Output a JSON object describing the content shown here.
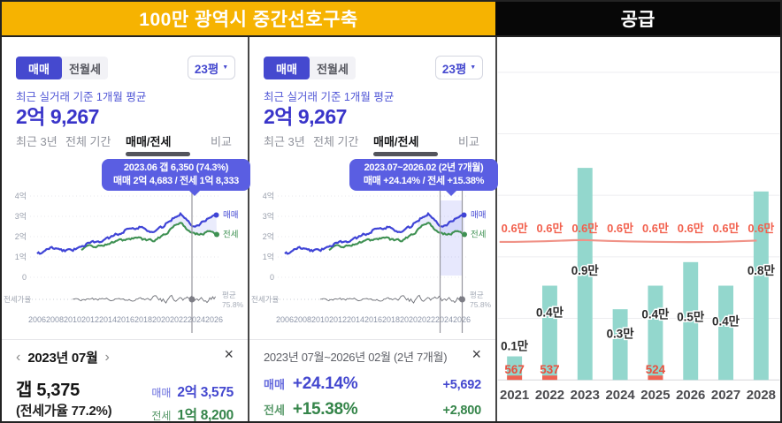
{
  "header": {
    "left_title": "100만 광역시 중간선호구축",
    "right_title": "공급"
  },
  "panels": [
    {
      "toggle": {
        "sale": "매매",
        "rent": "전월세"
      },
      "size_select": "23평",
      "caption": "최근 실거래 기준 1개월 평균",
      "price": "2억 9,267",
      "tabs": [
        "최근 3년",
        "전체 기간",
        "매매/전세",
        "비교"
      ],
      "active_tab": "매매/전세",
      "tooltip": [
        "2023.06  갭 6,350 (74.3%)",
        "매매 2억 4,683 / 전세 1억 8,333"
      ],
      "legend": {
        "sale": "매매",
        "jeonse": "전세",
        "avg_label": "평균",
        "avg_value": "75.8%",
        "ratio_label": "전세가율",
        "zero": "0"
      },
      "y_ticks": [
        "4억",
        "3억",
        "2억",
        "1억"
      ],
      "x_ticks": [
        "2006",
        "2008",
        "2010",
        "2012",
        "2014",
        "2016",
        "2018",
        "2020",
        "2022",
        "2024",
        "2026"
      ],
      "footer": {
        "nav_prev": "‹",
        "title": "2023년 07월",
        "nav_next": "›",
        "close": "×",
        "gap_value": "갭 5,375",
        "ratio_value": "(전세가율 77.2%)",
        "sale_label": "매매",
        "sale_value": "2억 3,575",
        "jeonse_label": "전세",
        "jeonse_value": "1억 8,200"
      }
    },
    {
      "toggle": {
        "sale": "매매",
        "rent": "전월세"
      },
      "size_select": "23평",
      "caption": "최근 실거래 기준 1개월 평균",
      "price": "2억 9,267",
      "tabs": [
        "최근 3년",
        "전체 기간",
        "매매/전세",
        "비교"
      ],
      "active_tab": "매매/전세",
      "tooltip": [
        "2023.07~2026.02 (2년 7개월)",
        "매매 +24.14%  /  전세 +15.38%"
      ],
      "legend": {
        "sale": "매매",
        "jeonse": "전세",
        "avg_label": "평균",
        "avg_value": "75.8%",
        "ratio_label": "전세가율",
        "zero": "0"
      },
      "y_ticks": [
        "4억",
        "3억",
        "2억",
        "1억"
      ],
      "x_ticks": [
        "2006",
        "2008",
        "2010",
        "2012",
        "2014",
        "2016",
        "2018",
        "2020",
        "2022",
        "2024",
        "2026"
      ],
      "footer": {
        "title": "2023년 07월~2026년 02월 (2년 7개월)",
        "close": "×",
        "sale_label": "매매",
        "sale_pct": "+24.14%",
        "sale_delta": "+5,692",
        "jeonse_label": "전세",
        "jeonse_pct": "+15.38%",
        "jeonse_delta": "+2,800"
      }
    }
  ],
  "colors": {
    "accent_indigo": "#4448cf",
    "price_indigo": "#3934c9",
    "tooltip_bg": "#5a5ee2",
    "line_blue": "#3f44d6",
    "line_green": "#3f9153",
    "bar_teal": "#93d7cd",
    "red": "#f2604d",
    "red_line": "#f09287",
    "yellow": "#f6b301",
    "gray_text": "#8f929b"
  },
  "chart_data": [
    {
      "type": "line",
      "title": "매매/전세 실거래가 추이 (왼쪽 패널)",
      "x_range": [
        2006,
        2026.3
      ],
      "y_unit": "억",
      "y_ticks": [
        4,
        3,
        2,
        1,
        0
      ],
      "x_tick_years": [
        2006,
        2008,
        2010,
        2012,
        2014,
        2016,
        2018,
        2020,
        2022,
        2024,
        2026
      ],
      "series": [
        {
          "name": "매매",
          "anchors": [
            [
              2006,
              1.1
            ],
            [
              2007.5,
              1.45
            ],
            [
              2008.5,
              1.35
            ],
            [
              2010,
              1.3
            ],
            [
              2011,
              1.6
            ],
            [
              2012.5,
              1.7
            ],
            [
              2014,
              1.9
            ],
            [
              2015.5,
              2.2
            ],
            [
              2016.5,
              2.5
            ],
            [
              2018,
              2.45
            ],
            [
              2019,
              2.25
            ],
            [
              2020,
              2.4
            ],
            [
              2021.5,
              3.0
            ],
            [
              2022.3,
              3.15
            ],
            [
              2023,
              2.75
            ],
            [
              2023.6,
              2.55
            ],
            [
              2024.3,
              2.65
            ],
            [
              2025.3,
              2.9
            ],
            [
              2026.3,
              3.05
            ]
          ]
        },
        {
          "name": "전세",
          "anchors": [
            [
              2011,
              1.35
            ],
            [
              2012,
              1.5
            ],
            [
              2013.5,
              1.55
            ],
            [
              2014.5,
              1.7
            ],
            [
              2016,
              1.85
            ],
            [
              2017.5,
              1.9
            ],
            [
              2018.5,
              1.8
            ],
            [
              2019.5,
              1.85
            ],
            [
              2020.5,
              2.1
            ],
            [
              2021.5,
              2.6
            ],
            [
              2022.3,
              2.75
            ],
            [
              2023,
              2.3
            ],
            [
              2023.8,
              2.1
            ],
            [
              2024.5,
              2.15
            ],
            [
              2025.5,
              2.25
            ],
            [
              2026.3,
              2.1
            ]
          ]
        },
        {
          "name": "전세가율",
          "average": "75.8%"
        }
      ],
      "markers": [
        2023.5
      ],
      "tooltip": [
        "2023.06  갭 6,350 (74.3%)",
        "매매 2억 4,683 / 전세 1억 8,333"
      ]
    },
    {
      "type": "line",
      "title": "매매/전세 실거래가 추이 + 구간선택 (가운데 패널)",
      "x_range": [
        2006,
        2026.3
      ],
      "y_unit": "억",
      "y_ticks": [
        4,
        3,
        2,
        1,
        0
      ],
      "x_tick_years": [
        2006,
        2008,
        2010,
        2012,
        2014,
        2016,
        2018,
        2020,
        2022,
        2024,
        2026
      ],
      "series": "same as panel 1",
      "markers": [
        2023.55,
        2026.05
      ],
      "selection": {
        "from": "2023.07",
        "to": "2026.02",
        "duration": "2년 7개월",
        "sale_change": "+24.14%",
        "jeonse_change": "+15.38%"
      },
      "tooltip": [
        "2023.07~2026.02 (2년 7개월)",
        "매매 +24.14%  /  전세 +15.38%"
      ]
    },
    {
      "type": "bar",
      "title": "공급",
      "categories": [
        "2021",
        "2022",
        "2023",
        "2024",
        "2025",
        "2026",
        "2027",
        "2028"
      ],
      "values_man": [
        0.1,
        0.4,
        0.9,
        0.3,
        0.4,
        0.5,
        0.4,
        0.8
      ],
      "bar_labels": [
        "0.1만",
        "0.4만",
        "0.9만",
        "0.3만",
        "0.4만",
        "0.5만",
        "0.4만",
        "0.8만"
      ],
      "base_counts": [
        567,
        537,
        null,
        null,
        524,
        null,
        null,
        null
      ],
      "demand_line": {
        "value_man": 0.6,
        "labels": [
          "0.6만",
          "0.6만",
          "0.6만",
          "0.6만",
          "0.6만",
          "0.6만",
          "0.6만",
          "0.6만"
        ]
      }
    }
  ]
}
